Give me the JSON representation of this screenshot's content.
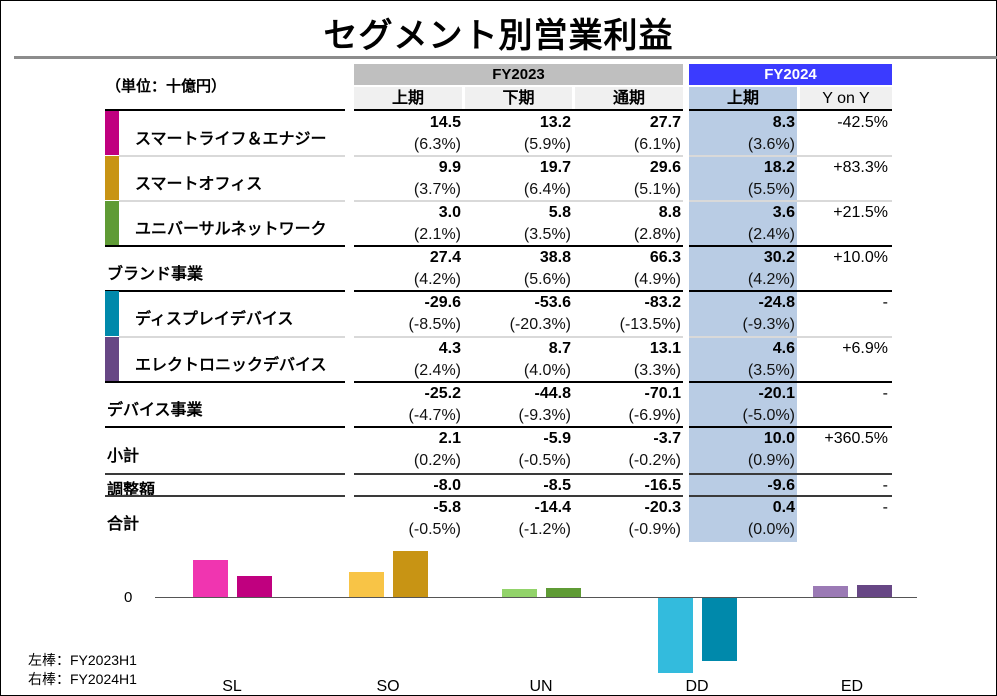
{
  "title": "セグメント別営業利益",
  "unit_label": "（単位：十億円）",
  "headers": {
    "fy2023": "FY2023",
    "fy2024": "FY2024",
    "fy2023_cols": [
      "上期",
      "下期",
      "通期"
    ],
    "fy2024_cols": [
      "上期",
      "Y on Y"
    ]
  },
  "colors": {
    "fy2023_header": "#bfbfbf",
    "fy2024_header": "#3b3bff",
    "fy2024_column": "#b9cce4",
    "SL": "#c0007f",
    "SO": "#c89414",
    "UN": "#5f9b35",
    "DD": "#0089ab",
    "ED": "#674785"
  },
  "rows": [
    {
      "label": "スマートライフ＆エナジー",
      "color": "#c0007f",
      "fy23h1": "14.5",
      "fy23h1_pct": "(6.3%)",
      "fy23h2": "13.2",
      "fy23h2_pct": "(5.9%)",
      "fy23": "27.7",
      "fy23_pct": "(6.1%)",
      "fy24h1": "8.3",
      "fy24h1_pct": "(3.6%)",
      "yoy": "-42.5%"
    },
    {
      "label": "スマートオフィス",
      "color": "#c89414",
      "fy23h1": "9.9",
      "fy23h1_pct": "(3.7%)",
      "fy23h2": "19.7",
      "fy23h2_pct": "(6.4%)",
      "fy23": "29.6",
      "fy23_pct": "(5.1%)",
      "fy24h1": "18.2",
      "fy24h1_pct": "(5.5%)",
      "yoy": "+83.3%"
    },
    {
      "label": "ユニバーサルネットワーク",
      "color": "#5f9b35",
      "fy23h1": "3.0",
      "fy23h1_pct": "(2.1%)",
      "fy23h2": "5.8",
      "fy23h2_pct": "(3.5%)",
      "fy23": "8.8",
      "fy23_pct": "(2.8%)",
      "fy24h1": "3.6",
      "fy24h1_pct": "(2.4%)",
      "yoy": "+21.5%"
    },
    {
      "label": "ブランド事業",
      "fy23h1": "27.4",
      "fy23h1_pct": "(4.2%)",
      "fy23h2": "38.8",
      "fy23h2_pct": "(5.6%)",
      "fy23": "66.3",
      "fy23_pct": "(4.9%)",
      "fy24h1": "30.2",
      "fy24h1_pct": "(4.2%)",
      "yoy": "+10.0%"
    },
    {
      "label": "ディスプレイデバイス",
      "color": "#0089ab",
      "fy23h1": "-29.6",
      "fy23h1_pct": "(-8.5%)",
      "fy23h2": "-53.6",
      "fy23h2_pct": "(-20.3%)",
      "fy23": "-83.2",
      "fy23_pct": "(-13.5%)",
      "fy24h1": "-24.8",
      "fy24h1_pct": "(-9.3%)",
      "yoy": "-"
    },
    {
      "label": "エレクトロニックデバイス",
      "color": "#674785",
      "fy23h1": "4.3",
      "fy23h1_pct": "(2.4%)",
      "fy23h2": "8.7",
      "fy23h2_pct": "(4.0%)",
      "fy23": "13.1",
      "fy23_pct": "(3.3%)",
      "fy24h1": "4.6",
      "fy24h1_pct": "(3.5%)",
      "yoy": "+6.9%"
    },
    {
      "label": "デバイス事業",
      "fy23h1": "-25.2",
      "fy23h1_pct": "(-4.7%)",
      "fy23h2": "-44.8",
      "fy23h2_pct": "(-9.3%)",
      "fy23": "-70.1",
      "fy23_pct": "(-6.9%)",
      "fy24h1": "-20.1",
      "fy24h1_pct": "(-5.0%)",
      "yoy": "-"
    },
    {
      "label": "小計",
      "fy23h1": "2.1",
      "fy23h1_pct": "(0.2%)",
      "fy23h2": "-5.9",
      "fy23h2_pct": "(-0.5%)",
      "fy23": "-3.7",
      "fy23_pct": "(-0.2%)",
      "fy24h1": "10.0",
      "fy24h1_pct": "(0.9%)",
      "yoy": "+360.5%"
    },
    {
      "label": "調整額",
      "fy23h1": "-8.0",
      "fy23h2": "-8.5",
      "fy23": "-16.5",
      "fy24h1": "-9.6",
      "yoy": "-"
    },
    {
      "label": "合計",
      "fy23h1": "-5.8",
      "fy23h1_pct": "(-0.5%)",
      "fy23h2": "-14.4",
      "fy23h2_pct": "(-1.2%)",
      "fy23": "-20.3",
      "fy23_pct": "(-0.9%)",
      "fy24h1": "0.4",
      "fy24h1_pct": "(0.0%)",
      "yoy": "-"
    }
  ],
  "chart_data": {
    "type": "bar",
    "title": "",
    "categories": [
      "SL",
      "SO",
      "UN",
      "DD",
      "ED"
    ],
    "series": [
      {
        "name": "FY2023H1",
        "values": [
          14.5,
          9.9,
          3.0,
          -29.6,
          4.3
        ],
        "colors": [
          "#f035b0",
          "#f8c446",
          "#92d36a",
          "#33bbdd",
          "#9b7ab5"
        ]
      },
      {
        "name": "FY2024H1",
        "values": [
          8.3,
          18.2,
          3.6,
          -24.8,
          4.6
        ],
        "colors": [
          "#c0007f",
          "#c89414",
          "#5f9b35",
          "#0089ab",
          "#674785"
        ]
      }
    ],
    "y_tick_labels": [
      "0"
    ],
    "legend": [
      "左棒：FY2023H1",
      "右棒：FY2024H1"
    ],
    "legend_position": "bottom-left",
    "xlabel": "",
    "ylabel": ""
  }
}
